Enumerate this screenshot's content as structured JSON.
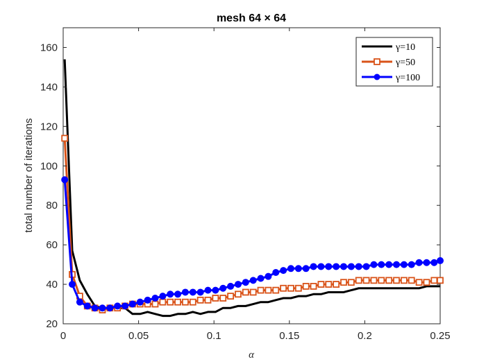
{
  "chart_data": {
    "type": "line",
    "title": "mesh 64 × 64",
    "xlabel": "α",
    "ylabel": "total number of iterations",
    "xlim": [
      0,
      0.25
    ],
    "ylim": [
      20,
      170
    ],
    "xticks": [
      0,
      0.05,
      0.1,
      0.15,
      0.2,
      0.25
    ],
    "xtick_labels": [
      "0",
      "0.05",
      "0.1",
      "0.15",
      "0.2",
      "0.25"
    ],
    "yticks": [
      20,
      40,
      60,
      80,
      100,
      120,
      140,
      160
    ],
    "ytick_labels": [
      "20",
      "40",
      "60",
      "80",
      "100",
      "120",
      "140",
      "160"
    ],
    "grid": false,
    "legend_position": "top-right",
    "x": [
      0.001,
      0.006,
      0.011,
      0.016,
      0.021,
      0.026,
      0.031,
      0.036,
      0.041,
      0.046,
      0.051,
      0.056,
      0.061,
      0.066,
      0.071,
      0.076,
      0.081,
      0.086,
      0.091,
      0.096,
      0.101,
      0.106,
      0.111,
      0.116,
      0.121,
      0.126,
      0.131,
      0.136,
      0.141,
      0.146,
      0.151,
      0.156,
      0.161,
      0.166,
      0.171,
      0.176,
      0.181,
      0.186,
      0.191,
      0.196,
      0.201,
      0.206,
      0.211,
      0.216,
      0.221,
      0.226,
      0.231,
      0.236,
      0.241,
      0.246,
      0.25
    ],
    "series": [
      {
        "name": "γ=10",
        "color": "#000000",
        "marker": "none",
        "values": [
          154,
          57,
          42,
          35,
          29,
          28,
          28,
          28,
          28,
          25,
          25,
          26,
          25,
          24,
          24,
          25,
          25,
          26,
          25,
          26,
          26,
          28,
          28,
          29,
          29,
          30,
          31,
          31,
          32,
          33,
          33,
          34,
          34,
          35,
          35,
          36,
          36,
          36,
          37,
          38,
          38,
          38,
          38,
          38,
          38,
          38,
          38,
          38,
          39,
          39,
          39
        ]
      },
      {
        "name": "γ=50",
        "color": "#d95319",
        "marker": "square",
        "values": [
          114,
          45,
          34,
          29,
          28,
          27,
          28,
          28,
          29,
          30,
          30,
          30,
          30,
          31,
          31,
          31,
          31,
          31,
          32,
          32,
          33,
          33,
          34,
          35,
          36,
          36,
          37,
          37,
          37,
          38,
          38,
          38,
          39,
          39,
          40,
          40,
          40,
          41,
          41,
          42,
          42,
          42,
          42,
          42,
          42,
          42,
          42,
          41,
          41,
          42,
          42
        ]
      },
      {
        "name": "γ=100",
        "color": "#0000ff",
        "marker": "circle",
        "values": [
          93,
          40,
          31,
          29,
          28,
          28,
          28,
          29,
          29,
          30,
          31,
          32,
          33,
          34,
          35,
          35,
          36,
          36,
          36,
          37,
          37,
          38,
          39,
          40,
          41,
          42,
          43,
          44,
          46,
          47,
          48,
          48,
          48,
          49,
          49,
          49,
          49,
          49,
          49,
          49,
          49,
          50,
          50,
          50,
          50,
          50,
          50,
          51,
          51,
          51,
          52
        ]
      }
    ]
  }
}
